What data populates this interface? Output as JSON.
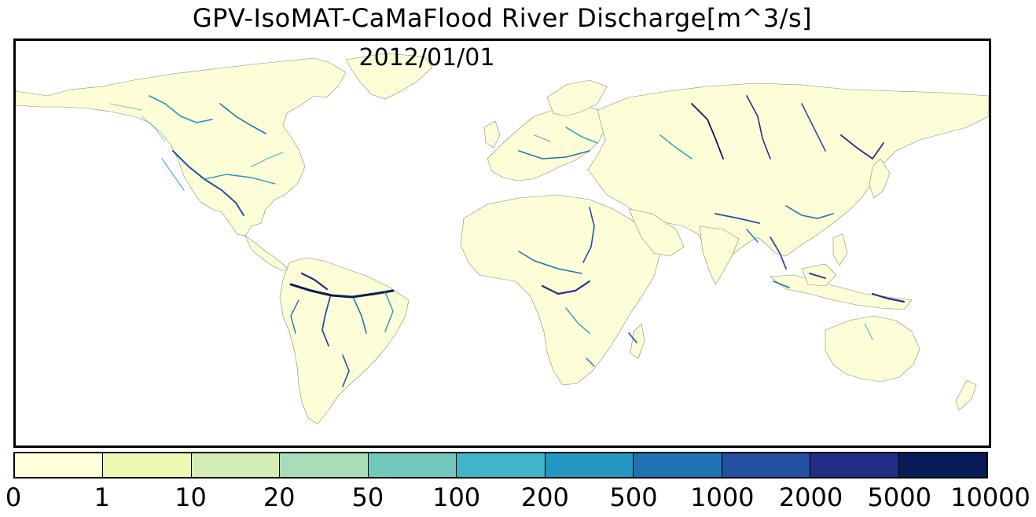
{
  "title": "GPV-IsoMAT-CaMaFlood River Discharge[m^3/s]",
  "date": "2012/01/01",
  "map": {
    "land_color": "#fdfed8",
    "border_color": "#7a7a6a",
    "background_color": "#ffffff"
  },
  "colorbar": {
    "labels": [
      "0",
      "1",
      "10",
      "20",
      "50",
      "100",
      "200",
      "500",
      "1000",
      "2000",
      "5000",
      "10000"
    ],
    "colors": [
      "#ffffd9",
      "#edf8b1",
      "#d3eeb4",
      "#a9ddb8",
      "#73c8bd",
      "#42b5c9",
      "#2397c1",
      "#1f73b2",
      "#2350a1",
      "#232d85",
      "#081d58"
    ]
  }
}
